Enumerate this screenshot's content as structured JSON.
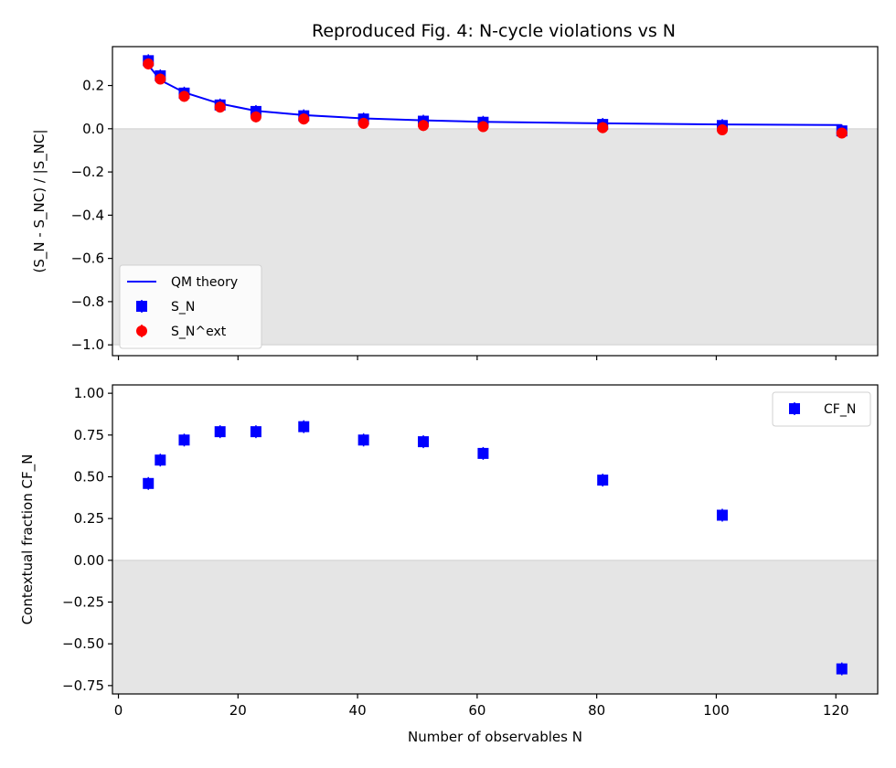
{
  "title": "Reproduced Fig. 4: N-cycle violations vs N",
  "chart_data": [
    {
      "type": "scatter",
      "ylabel": "(S_N - S_NC) / |S_NC|",
      "xlabel": "",
      "xlim": [
        -1,
        127
      ],
      "ylim": [
        -1.05,
        0.38
      ],
      "xticks": [
        0,
        20,
        40,
        60,
        80,
        100,
        120
      ],
      "yticks": [
        -1.0,
        -0.8,
        -0.6,
        -0.4,
        -0.2,
        0.0,
        0.2
      ],
      "ytick_labels": [
        "−1.0",
        "−0.8",
        "−0.6",
        "−0.4",
        "−0.2",
        "0.0",
        "0.2"
      ],
      "shaded_region": {
        "from": -1.0,
        "to": 0.0,
        "color": "#e5e5e5"
      },
      "legend_position": "lower-left",
      "series": [
        {
          "name": "QM theory",
          "kind": "line",
          "color": "#0000ff",
          "x": [
            5,
            7,
            11,
            17,
            23,
            31,
            41,
            51,
            61,
            81,
            101,
            121
          ],
          "y": [
            0.295,
            0.225,
            0.168,
            0.116,
            0.083,
            0.063,
            0.048,
            0.039,
            0.032,
            0.025,
            0.02,
            0.017
          ]
        },
        {
          "name": "S_N",
          "kind": "square",
          "color": "#0000ff",
          "x": [
            5,
            7,
            11,
            17,
            23,
            31,
            41,
            51,
            61,
            81,
            101,
            121
          ],
          "y": [
            0.315,
            0.245,
            0.165,
            0.11,
            0.08,
            0.06,
            0.045,
            0.035,
            0.03,
            0.02,
            0.015,
            -0.01
          ]
        },
        {
          "name": "S_N^ext",
          "kind": "circle",
          "color": "#ff0000",
          "x": [
            5,
            7,
            11,
            17,
            23,
            31,
            41,
            51,
            61,
            81,
            101,
            121
          ],
          "y": [
            0.3,
            0.23,
            0.15,
            0.1,
            0.055,
            0.045,
            0.025,
            0.015,
            0.01,
            0.005,
            -0.005,
            -0.02
          ]
        }
      ]
    },
    {
      "type": "scatter",
      "ylabel": "Contextual fraction CF_N",
      "xlabel": "Number of observables N",
      "xlim": [
        -1,
        127
      ],
      "ylim": [
        -0.8,
        1.05
      ],
      "xticks": [
        0,
        20,
        40,
        60,
        80,
        100,
        120
      ],
      "yticks": [
        -0.75,
        -0.5,
        -0.25,
        0.0,
        0.25,
        0.5,
        0.75,
        1.0
      ],
      "ytick_labels": [
        "−0.75",
        "−0.50",
        "−0.25",
        "0.00",
        "0.25",
        "0.50",
        "0.75",
        "1.00"
      ],
      "shaded_region": {
        "from": -0.8,
        "to": 0.0,
        "color": "#e5e5e5"
      },
      "legend_position": "upper-right",
      "series": [
        {
          "name": "CF_N",
          "kind": "square",
          "color": "#0000ff",
          "x": [
            5,
            7,
            11,
            17,
            23,
            31,
            41,
            51,
            61,
            81,
            101,
            121
          ],
          "y": [
            0.46,
            0.6,
            0.72,
            0.77,
            0.77,
            0.8,
            0.72,
            0.71,
            0.64,
            0.48,
            0.27,
            -0.65
          ]
        }
      ]
    }
  ]
}
